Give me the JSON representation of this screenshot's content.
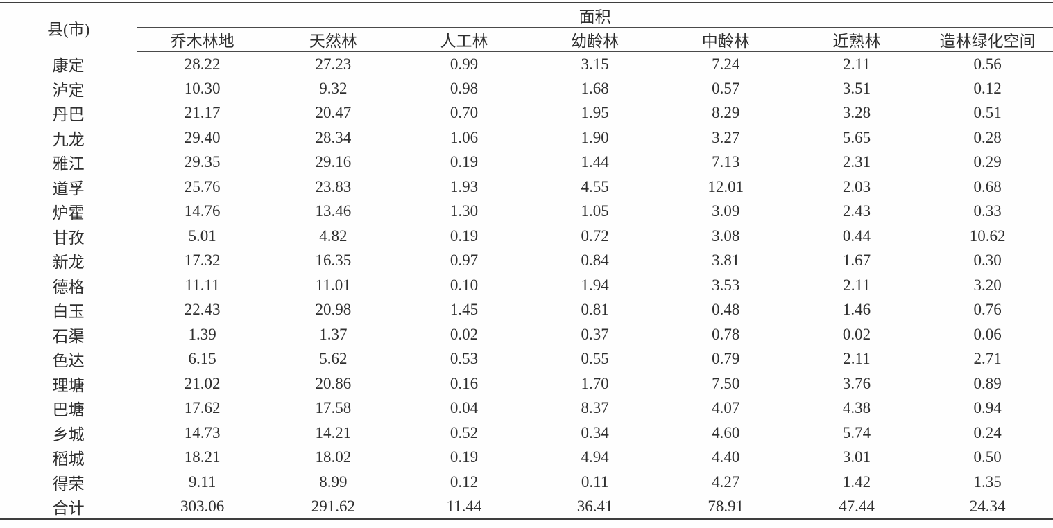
{
  "page": {
    "background_color": "#fefefe",
    "text_color": "#2f2f2f",
    "rule_color": "#3e3e3e"
  },
  "table": {
    "corner_header": "县(市)",
    "group_header": "面积",
    "columns": [
      "乔木林地",
      "天然林",
      "人工林",
      "幼龄林",
      "中龄林",
      "近熟林",
      "造林绿化空间"
    ],
    "rows": [
      {
        "county": "康定",
        "values": [
          "28.22",
          "27.23",
          "0.99",
          "3.15",
          "7.24",
          "2.11",
          "0.56"
        ]
      },
      {
        "county": "泸定",
        "values": [
          "10.30",
          "9.32",
          "0.98",
          "1.68",
          "0.57",
          "3.51",
          "0.12"
        ]
      },
      {
        "county": "丹巴",
        "values": [
          "21.17",
          "20.47",
          "0.70",
          "1.95",
          "8.29",
          "3.28",
          "0.51"
        ]
      },
      {
        "county": "九龙",
        "values": [
          "29.40",
          "28.34",
          "1.06",
          "1.90",
          "3.27",
          "5.65",
          "0.28"
        ]
      },
      {
        "county": "雅江",
        "values": [
          "29.35",
          "29.16",
          "0.19",
          "1.44",
          "7.13",
          "2.31",
          "0.29"
        ]
      },
      {
        "county": "道孚",
        "values": [
          "25.76",
          "23.83",
          "1.93",
          "4.55",
          "12.01",
          "2.03",
          "0.68"
        ]
      },
      {
        "county": "炉霍",
        "values": [
          "14.76",
          "13.46",
          "1.30",
          "1.05",
          "3.09",
          "2.43",
          "0.33"
        ]
      },
      {
        "county": "甘孜",
        "values": [
          "5.01",
          "4.82",
          "0.19",
          "0.72",
          "3.08",
          "0.44",
          "10.62"
        ]
      },
      {
        "county": "新龙",
        "values": [
          "17.32",
          "16.35",
          "0.97",
          "0.84",
          "3.81",
          "1.67",
          "0.30"
        ]
      },
      {
        "county": "德格",
        "values": [
          "11.11",
          "11.01",
          "0.10",
          "1.94",
          "3.53",
          "2.11",
          "3.20"
        ]
      },
      {
        "county": "白玉",
        "values": [
          "22.43",
          "20.98",
          "1.45",
          "0.81",
          "0.48",
          "1.46",
          "0.76"
        ]
      },
      {
        "county": "石渠",
        "values": [
          "1.39",
          "1.37",
          "0.02",
          "0.37",
          "0.78",
          "0.02",
          "0.06"
        ]
      },
      {
        "county": "色达",
        "values": [
          "6.15",
          "5.62",
          "0.53",
          "0.55",
          "0.79",
          "2.11",
          "2.71"
        ]
      },
      {
        "county": "理塘",
        "values": [
          "21.02",
          "20.86",
          "0.16",
          "1.70",
          "7.50",
          "3.76",
          "0.89"
        ]
      },
      {
        "county": "巴塘",
        "values": [
          "17.62",
          "17.58",
          "0.04",
          "8.37",
          "4.07",
          "4.38",
          "0.94"
        ]
      },
      {
        "county": "乡城",
        "values": [
          "14.73",
          "14.21",
          "0.52",
          "0.34",
          "4.60",
          "5.74",
          "0.24"
        ]
      },
      {
        "county": "稻城",
        "values": [
          "18.21",
          "18.02",
          "0.19",
          "4.94",
          "4.40",
          "3.01",
          "0.50"
        ]
      },
      {
        "county": "得荣",
        "values": [
          "9.11",
          "8.99",
          "0.12",
          "0.11",
          "4.27",
          "1.42",
          "1.35"
        ]
      },
      {
        "county": "合计",
        "values": [
          "303.06",
          "291.62",
          "11.44",
          "36.41",
          "78.91",
          "47.44",
          "24.34"
        ],
        "is_total": true
      }
    ]
  }
}
